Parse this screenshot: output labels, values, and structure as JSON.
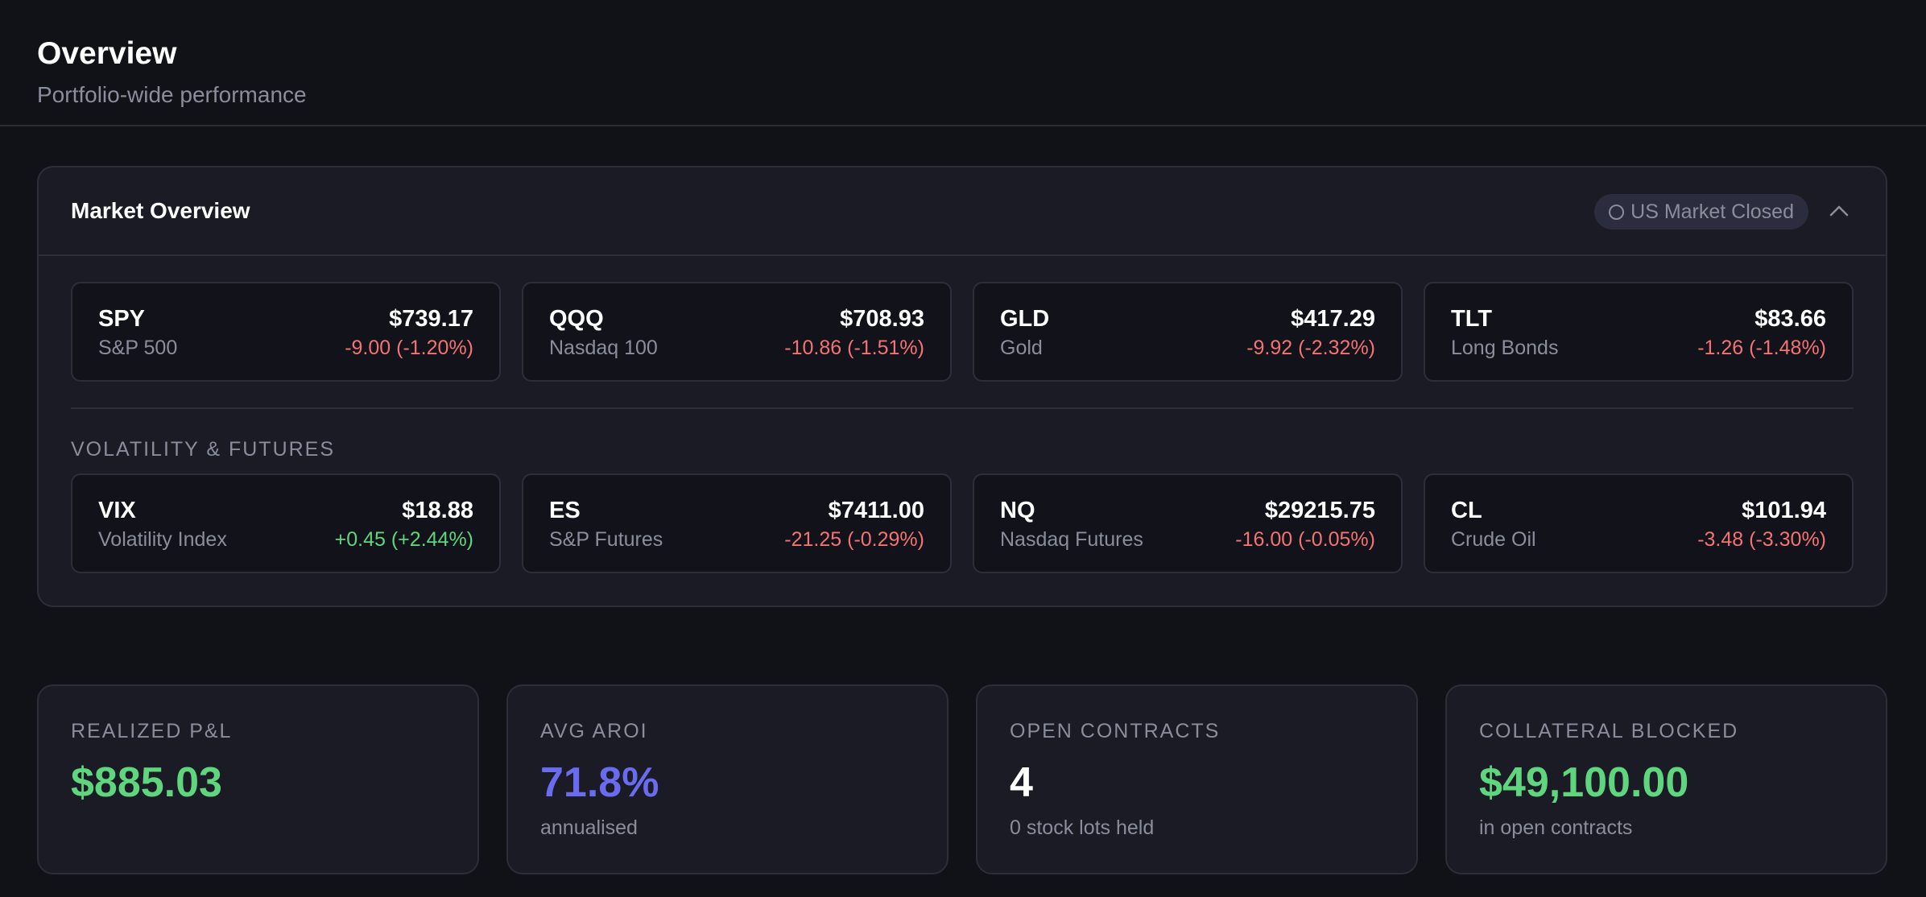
{
  "header": {
    "title": "Overview",
    "subtitle": "Portfolio-wide performance"
  },
  "market": {
    "title": "Market Overview",
    "status_label": "US Market Closed",
    "section_label": "VOLATILITY & FUTURES",
    "tickers": [
      {
        "symbol": "SPY",
        "name": "S&P 500",
        "price": "$739.17",
        "change": "-9.00 (-1.20%)",
        "direction": "down"
      },
      {
        "symbol": "QQQ",
        "name": "Nasdaq 100",
        "price": "$708.93",
        "change": "-10.86 (-1.51%)",
        "direction": "down"
      },
      {
        "symbol": "GLD",
        "name": "Gold",
        "price": "$417.29",
        "change": "-9.92 (-2.32%)",
        "direction": "down"
      },
      {
        "symbol": "TLT",
        "name": "Long Bonds",
        "price": "$83.66",
        "change": "-1.26 (-1.48%)",
        "direction": "down"
      }
    ],
    "futures": [
      {
        "symbol": "VIX",
        "name": "Volatility Index",
        "price": "$18.88",
        "change": "+0.45 (+2.44%)",
        "direction": "up"
      },
      {
        "symbol": "ES",
        "name": "S&P Futures",
        "price": "$7411.00",
        "change": "-21.25 (-0.29%)",
        "direction": "down"
      },
      {
        "symbol": "NQ",
        "name": "Nasdaq Futures",
        "price": "$29215.75",
        "change": "-16.00 (-0.05%)",
        "direction": "down"
      },
      {
        "symbol": "CL",
        "name": "Crude Oil",
        "price": "$101.94",
        "change": "-3.48 (-3.30%)",
        "direction": "down"
      }
    ]
  },
  "stats": [
    {
      "label": "REALIZED P&L",
      "value": "$885.03",
      "sub": "",
      "color": "#5fd57d"
    },
    {
      "label": "AVG AROI",
      "value": "71.8%",
      "sub": "annualised",
      "color": "#6a6cf0"
    },
    {
      "label": "OPEN CONTRACTS",
      "value": "4",
      "sub": "0 stock lots held",
      "color": "#ffffff"
    },
    {
      "label": "COLLATERAL BLOCKED",
      "value": "$49,100.00",
      "sub": "in open contracts",
      "color": "#5fd57d"
    }
  ],
  "colors": {
    "negative": "#f47272",
    "positive": "#5fd57d",
    "background": "#111218",
    "card": "#1a1b24"
  },
  "icons": {
    "status": "circle-outline-icon",
    "collapse": "chevron-up-icon"
  }
}
